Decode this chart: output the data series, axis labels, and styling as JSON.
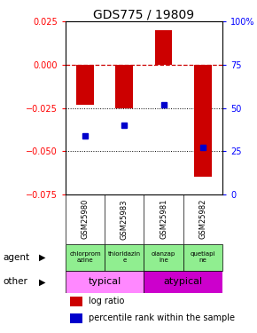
{
  "title": "GDS775 / 19809",
  "samples": [
    "GSM25980",
    "GSM25983",
    "GSM25981",
    "GSM25982"
  ],
  "log_ratios": [
    -0.023,
    -0.025,
    0.02,
    -0.065
  ],
  "percentile_ranks": [
    34,
    40,
    52,
    27
  ],
  "ylim_left": [
    -0.075,
    0.025
  ],
  "ylim_right": [
    0,
    100
  ],
  "yticks_left": [
    0.025,
    0,
    -0.025,
    -0.05,
    -0.075
  ],
  "yticks_right": [
    100,
    75,
    50,
    25,
    0
  ],
  "agent_labels": [
    "chlorprom\nazine",
    "thioridazin\ne",
    "olanzap\nine",
    "quetiapi\nne"
  ],
  "bar_color": "#CC0000",
  "dot_color": "#0000CC",
  "bg_color": "#FFFFFF",
  "zero_line_color": "#CC0000",
  "sample_bg": "#C8C8C8",
  "green_color": "#90EE90",
  "pink_color": "#FF88FF",
  "magenta_color": "#CC00CC",
  "title_fontsize": 10,
  "tick_fontsize": 7,
  "bar_width": 0.45
}
